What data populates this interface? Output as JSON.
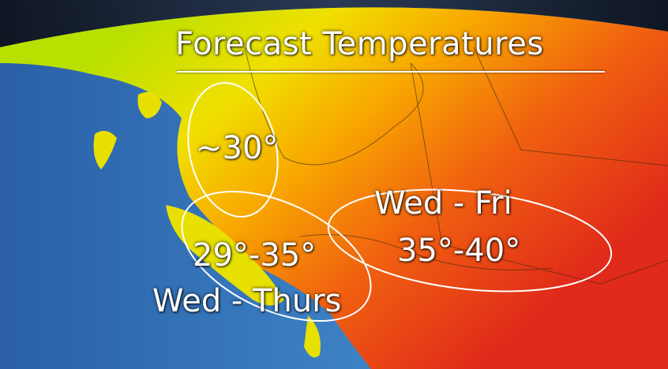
{
  "title": "Forecast Temperatures",
  "regions": [
    {
      "id": "north-coast",
      "temperature": "~30°"
    },
    {
      "id": "south-coast",
      "temperature": "29°-35°",
      "days": "Wed - Thurs"
    },
    {
      "id": "interior",
      "temperature": "35°-40°",
      "days": "Wed - Fri"
    }
  ],
  "colors": {
    "ocean": "#2f6fb8",
    "cool_land": "#c8e000",
    "warm_land": "#f5a000",
    "hot_land": "#e8341a",
    "annotation": "#ffffff"
  }
}
